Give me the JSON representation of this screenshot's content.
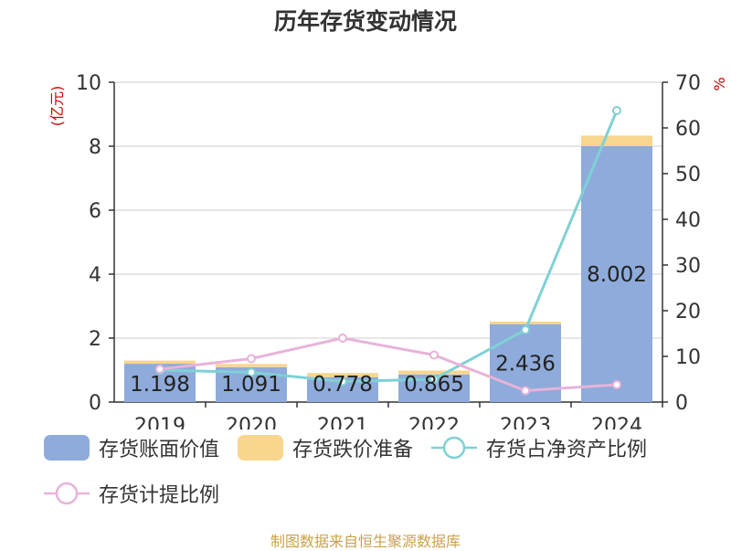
{
  "title": "历年存货变动情况",
  "source": "制图数据来自恒生聚源数据库",
  "legend": [
    {
      "label": "存货账面价值",
      "kind": "bar",
      "color": "#8eabdb"
    },
    {
      "label": "存货跌价准备",
      "kind": "bar",
      "color": "#f9d58e"
    },
    {
      "label": "存货占净资产比例",
      "kind": "line",
      "color": "#7fd1d5"
    },
    {
      "label": "存货计提比例",
      "kind": "line",
      "color": "#e7b3da"
    }
  ],
  "chart_data": {
    "type": "bar",
    "categories": [
      "2019",
      "2020",
      "2021",
      "2022",
      "2023",
      "2024"
    ],
    "left_axis": {
      "label": "(亿元)",
      "ylim": [
        0,
        10
      ],
      "ticks": [
        0,
        2,
        4,
        6,
        8,
        10
      ]
    },
    "right_axis": {
      "label": "%",
      "ylim": [
        0,
        70
      ],
      "ticks": [
        0,
        10,
        20,
        30,
        40,
        50,
        60,
        70
      ]
    },
    "grid": true,
    "series": [
      {
        "name": "存货账面价值",
        "type": "bar",
        "axis": "left",
        "stack": "inv",
        "values": [
          1.198,
          1.091,
          0.778,
          0.865,
          2.436,
          8.002
        ],
        "labels": [
          "1.198",
          "1.091",
          "0.778",
          "0.865",
          "2.436",
          "8.002"
        ],
        "color": "#8eabdb"
      },
      {
        "name": "存货跌价准备",
        "type": "bar",
        "axis": "left",
        "stack": "inv",
        "values": [
          0.1,
          0.1,
          0.13,
          0.12,
          0.08,
          0.33
        ],
        "color": "#f9d58e"
      },
      {
        "name": "存货占净资产比例",
        "type": "line",
        "axis": "right",
        "values": [
          7.0,
          6.5,
          4.5,
          5.0,
          15.8,
          63.8
        ],
        "color": "#7fd1d5"
      },
      {
        "name": "存货计提比例",
        "type": "line",
        "axis": "right",
        "values": [
          7.2,
          9.5,
          14.0,
          10.3,
          2.5,
          3.8
        ],
        "color": "#e7b3da"
      }
    ]
  }
}
